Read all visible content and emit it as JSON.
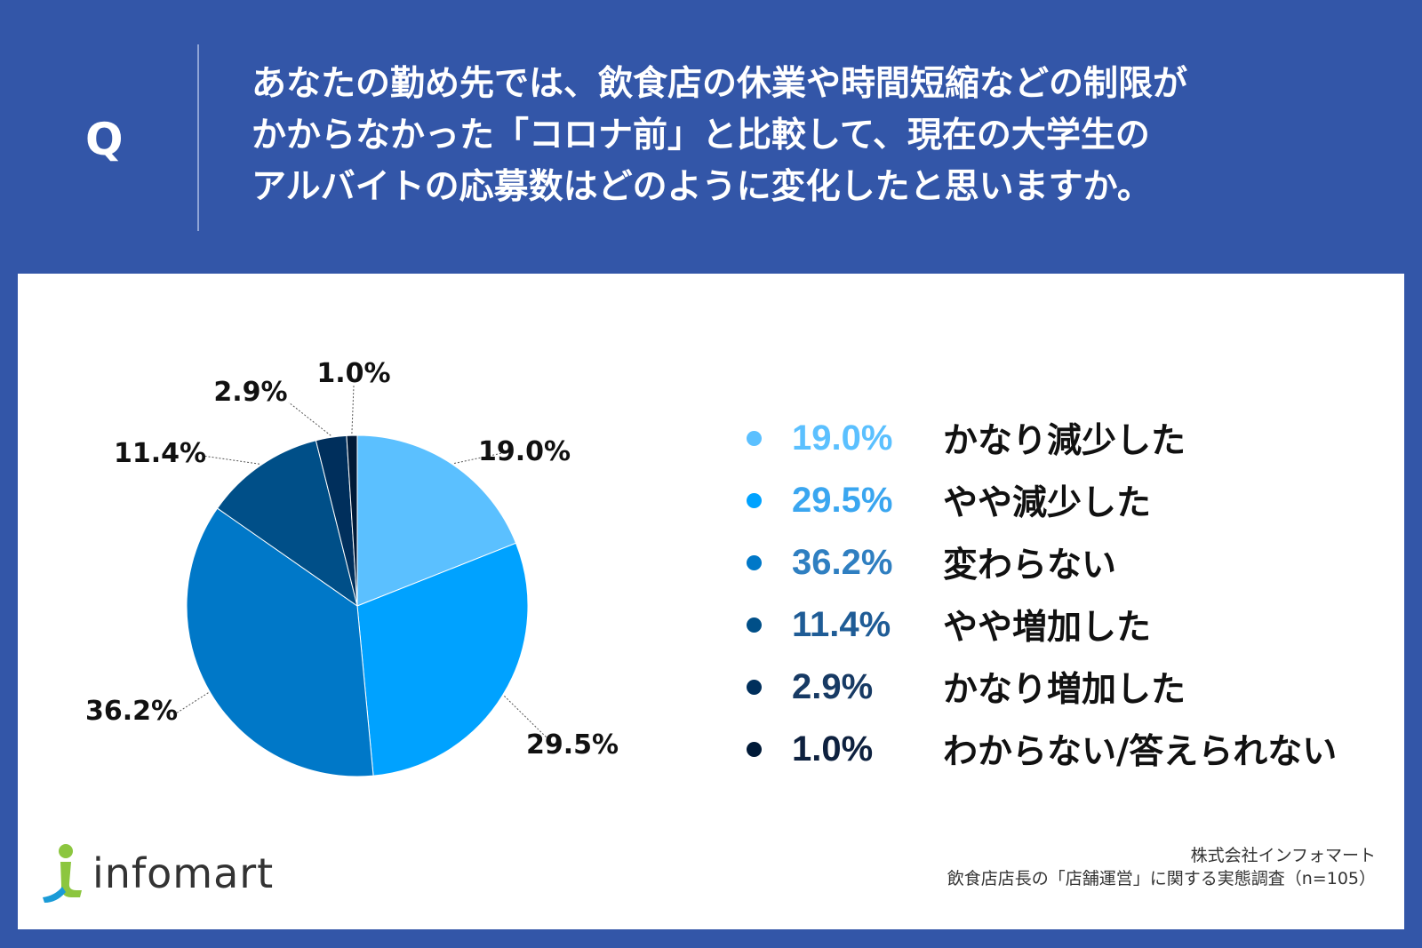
{
  "header": {
    "q_label": "Q",
    "question_lines": [
      "あなたの勤め先では、飲食店の休業や時間短縮などの制限が",
      "かからなかった「コロナ前」と比較して、現在の大学生の",
      "アルバイトの応募数はどのように変化したと思いますか。"
    ]
  },
  "chart_data": {
    "type": "pie",
    "title": "",
    "slices": [
      {
        "label": "かなり減少した",
        "value": 19.0,
        "value_label": "19.0%",
        "color": "#5bc0ff",
        "text_color": "#5bc0ff"
      },
      {
        "label": "やや減少した",
        "value": 29.5,
        "value_label": "29.5%",
        "color": "#00a2ff",
        "text_color": "#3aa6f0"
      },
      {
        "label": "変わらない",
        "value": 36.2,
        "value_label": "36.2%",
        "color": "#0078c8",
        "text_color": "#2f7fc1"
      },
      {
        "label": "やや増加した",
        "value": 11.4,
        "value_label": "11.4%",
        "color": "#004f88",
        "text_color": "#1f5c96"
      },
      {
        "label": "かなり増加した",
        "value": 2.9,
        "value_label": "2.9%",
        "color": "#002f5c",
        "text_color": "#173a64"
      },
      {
        "label": "わからない/答えられない",
        "value": 1.0,
        "value_label": "1.0%",
        "color": "#001a38",
        "text_color": "#0e213f"
      }
    ],
    "legend_position": "right"
  },
  "branding": {
    "logo_text": "infomart"
  },
  "source": {
    "line1": "株式会社インフォマート",
    "line2": "飲食店店長の「店舗運営」に関する実態調査（n=105）"
  }
}
